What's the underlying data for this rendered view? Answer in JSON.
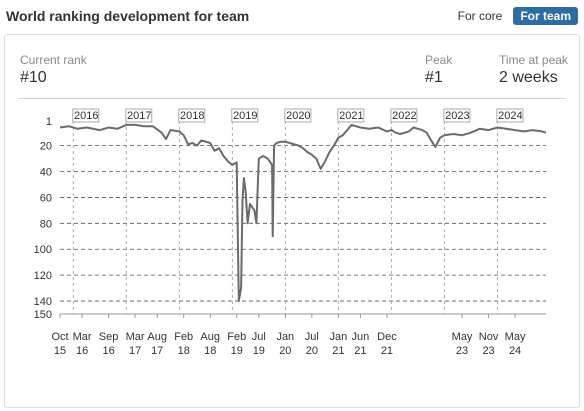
{
  "header": {
    "title": "World ranking development for team",
    "toggle": [
      {
        "label": "For core",
        "active": false
      },
      {
        "label": "For team",
        "active": true
      }
    ]
  },
  "stats": {
    "current_rank": {
      "label": "Current rank",
      "value": "#10"
    },
    "peak": {
      "label": "Peak",
      "value": "#1"
    },
    "time_at_peak": {
      "label": "Time at peak",
      "value": "2 weeks"
    }
  },
  "colors": {
    "line": "#6b6b6b",
    "accent": "#2e6da4",
    "grid": "#555555"
  },
  "chart_data": {
    "type": "line",
    "title": "",
    "xlabel": "",
    "ylabel": "",
    "y_reversed": true,
    "ylim": [
      1,
      150
    ],
    "y_ticks": [
      1,
      20,
      40,
      60,
      80,
      100,
      120,
      140,
      150
    ],
    "x_range": [
      "2015-10",
      "2024-12"
    ],
    "x_ticks": [
      {
        "month": "Oct",
        "year": "15",
        "date": "2015-10"
      },
      {
        "month": "Mar",
        "year": "16",
        "date": "2016-03"
      },
      {
        "month": "Sep",
        "year": "16",
        "date": "2016-09"
      },
      {
        "month": "Mar",
        "year": "17",
        "date": "2017-03"
      },
      {
        "month": "Aug",
        "year": "17",
        "date": "2017-08"
      },
      {
        "month": "Feb",
        "year": "18",
        "date": "2018-02"
      },
      {
        "month": "Aug",
        "year": "18",
        "date": "2018-08"
      },
      {
        "month": "Feb",
        "year": "19",
        "date": "2019-02"
      },
      {
        "month": "Jul",
        "year": "19",
        "date": "2019-07"
      },
      {
        "month": "Jan",
        "year": "20",
        "date": "2020-01"
      },
      {
        "month": "Jul",
        "year": "20",
        "date": "2020-07"
      },
      {
        "month": "Jan",
        "year": "21",
        "date": "2021-01"
      },
      {
        "month": "Jun",
        "year": "21",
        "date": "2021-06"
      },
      {
        "month": "Dec",
        "year": "21",
        "date": "2021-12"
      },
      {
        "month": "May",
        "year": "23",
        "date": "2023-05"
      },
      {
        "month": "Nov",
        "year": "23",
        "date": "2023-11"
      },
      {
        "month": "May",
        "year": "24",
        "date": "2024-05"
      }
    ],
    "year_markers": [
      {
        "label": "2016",
        "date": "2016-01"
      },
      {
        "label": "2017",
        "date": "2017-01"
      },
      {
        "label": "2018",
        "date": "2018-01"
      },
      {
        "label": "2019",
        "date": "2019-01"
      },
      {
        "label": "2020",
        "date": "2020-01"
      },
      {
        "label": "2021",
        "date": "2021-01"
      },
      {
        "label": "2022",
        "date": "2022-01"
      },
      {
        "label": "2023",
        "date": "2023-01"
      },
      {
        "label": "2024",
        "date": "2024-01"
      }
    ],
    "series": [
      {
        "name": "",
        "points": [
          [
            "2015-10",
            6
          ],
          [
            "2015-12",
            5
          ],
          [
            "2016-02",
            7
          ],
          [
            "2016-04",
            6
          ],
          [
            "2016-07",
            8
          ],
          [
            "2016-09",
            6
          ],
          [
            "2016-11",
            7
          ],
          [
            "2017-01",
            4
          ],
          [
            "2017-03",
            4
          ],
          [
            "2017-05",
            5
          ],
          [
            "2017-07",
            5
          ],
          [
            "2017-09",
            10
          ],
          [
            "2017-10",
            15
          ],
          [
            "2017-11",
            8
          ],
          [
            "2018-01",
            9
          ],
          [
            "2018-02",
            12
          ],
          [
            "2018-03",
            19
          ],
          [
            "2018-04",
            18
          ],
          [
            "2018-05",
            20
          ],
          [
            "2018-06",
            16
          ],
          [
            "2018-08",
            18
          ],
          [
            "2018-09",
            24
          ],
          [
            "2018-10",
            22
          ],
          [
            "2018-11",
            28
          ],
          [
            "2018-12",
            32
          ],
          [
            "2019-01",
            35
          ],
          [
            "2019-02",
            33
          ],
          [
            "2019-02-15",
            140
          ],
          [
            "2019-03",
            130
          ],
          [
            "2019-03-10",
            62
          ],
          [
            "2019-03-20",
            45
          ],
          [
            "2019-04",
            55
          ],
          [
            "2019-04-15",
            80
          ],
          [
            "2019-05",
            65
          ],
          [
            "2019-06",
            70
          ],
          [
            "2019-06-15",
            80
          ],
          [
            "2019-07",
            30
          ],
          [
            "2019-08",
            28
          ],
          [
            "2019-09",
            30
          ],
          [
            "2019-10",
            35
          ],
          [
            "2019-10-05",
            90
          ],
          [
            "2019-10-15",
            20
          ],
          [
            "2019-11",
            18
          ],
          [
            "2019-12",
            17
          ],
          [
            "2020-01",
            17
          ],
          [
            "2020-02",
            18
          ],
          [
            "2020-04",
            20
          ],
          [
            "2020-05",
            22
          ],
          [
            "2020-06",
            25
          ],
          [
            "2020-07",
            27
          ],
          [
            "2020-08",
            30
          ],
          [
            "2020-09",
            38
          ],
          [
            "2020-10",
            32
          ],
          [
            "2020-11",
            25
          ],
          [
            "2020-12",
            20
          ],
          [
            "2021-01",
            14
          ],
          [
            "2021-02",
            12
          ],
          [
            "2021-03",
            8
          ],
          [
            "2021-04",
            4
          ],
          [
            "2021-06",
            6
          ],
          [
            "2021-08",
            7
          ],
          [
            "2021-10",
            6
          ],
          [
            "2021-12",
            9
          ],
          [
            "2022-01",
            8
          ],
          [
            "2022-02",
            10
          ],
          [
            "2022-03",
            11
          ],
          [
            "2022-05",
            9
          ],
          [
            "2022-06",
            6
          ],
          [
            "2022-08",
            8
          ],
          [
            "2022-09",
            10
          ],
          [
            "2022-10",
            16
          ],
          [
            "2022-11",
            21
          ],
          [
            "2022-12",
            14
          ],
          [
            "2023-01",
            12
          ],
          [
            "2023-03",
            11
          ],
          [
            "2023-05",
            12
          ],
          [
            "2023-07",
            10
          ],
          [
            "2023-09",
            7
          ],
          [
            "2023-11",
            8
          ],
          [
            "2024-01",
            6
          ],
          [
            "2024-03",
            7
          ],
          [
            "2024-05",
            8
          ],
          [
            "2024-07",
            9
          ],
          [
            "2024-09",
            8
          ],
          [
            "2024-11",
            9
          ],
          [
            "2024-12",
            10
          ]
        ]
      }
    ]
  }
}
